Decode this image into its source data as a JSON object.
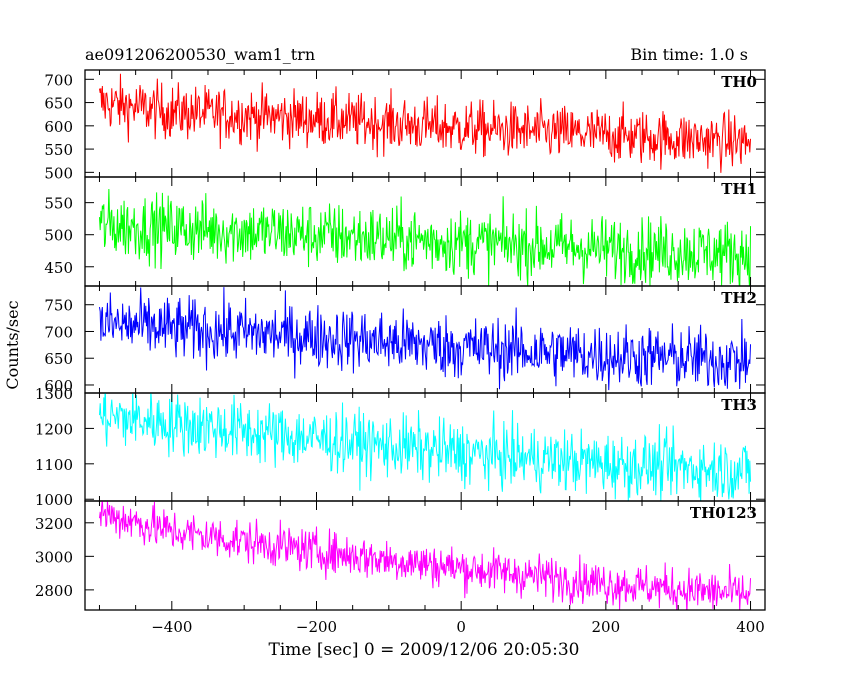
{
  "chart_data": {
    "type": "line",
    "title": "ae091206200530_wam1_trn",
    "subtitle": "Bin time: 1.0 s",
    "xlabel": "Time [sec] 0 = 2009/12/06 20:05:30",
    "ylabel": "Counts/sec",
    "xlim": [
      -520,
      420
    ],
    "x_ticks": [
      "−400",
      "−200",
      "0",
      "200",
      "400"
    ],
    "x_range_of_data": [
      -500,
      400
    ],
    "panels": [
      {
        "name": "TH0",
        "color": "#ff0000",
        "ylim": [
          490,
          720
        ],
        "ticks": [
          500,
          550,
          600,
          650,
          700
        ],
        "trend_x": [
          -500,
          -400,
          -200,
          0,
          200,
          400
        ],
        "trend_y": [
          650,
          630,
          615,
          595,
          580,
          565
        ],
        "noise_amplitude": 30
      },
      {
        "name": "TH1",
        "color": "#00ff00",
        "ylim": [
          420,
          590
        ],
        "ticks": [
          450,
          500,
          550
        ],
        "trend_x": [
          -500,
          -400,
          -200,
          0,
          200,
          400
        ],
        "trend_y": [
          515,
          510,
          500,
          488,
          478,
          470
        ],
        "noise_amplitude": 26
      },
      {
        "name": "TH2",
        "color": "#0000ff",
        "ylim": [
          585,
          785
        ],
        "ticks": [
          600,
          650,
          700,
          750
        ],
        "trend_x": [
          -500,
          -400,
          -200,
          0,
          200,
          400
        ],
        "trend_y": [
          715,
          705,
          690,
          670,
          655,
          645
        ],
        "noise_amplitude": 30
      },
      {
        "name": "TH3",
        "color": "#00ffff",
        "ylim": [
          995,
          1300
        ],
        "ticks": [
          1000,
          1100,
          1200,
          1300
        ],
        "trend_x": [
          -500,
          -400,
          -200,
          0,
          200,
          400
        ],
        "trend_y": [
          1235,
          1215,
          1170,
          1130,
          1100,
          1080
        ],
        "noise_amplitude": 45
      },
      {
        "name": "TH0123",
        "color": "#ff00ff",
        "ylim": [
          2680,
          3330
        ],
        "ticks": [
          2800,
          3000,
          3200
        ],
        "trend_x": [
          -500,
          -400,
          -200,
          0,
          200,
          400
        ],
        "trend_y": [
          3260,
          3150,
          3030,
          2930,
          2840,
          2770
        ],
        "noise_amplitude": 65
      }
    ]
  }
}
